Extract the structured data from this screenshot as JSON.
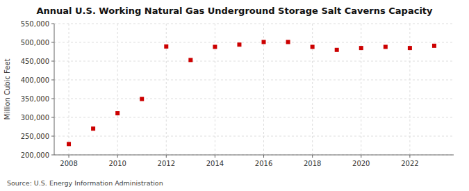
{
  "chart_data": {
    "type": "scatter",
    "title": "Annual U.S. Working Natural Gas Underground Storage Salt Caverns Capacity",
    "ylabel": "Million Cubic Feet",
    "annotation": "Source: U.S. Energy Information Administration",
    "x": [
      2008,
      2009,
      2010,
      2011,
      2012,
      2013,
      2014,
      2015,
      2016,
      2017,
      2018,
      2019,
      2020,
      2021,
      2022,
      2023
    ],
    "values": [
      229000,
      270000,
      311000,
      349000,
      489000,
      453000,
      488000,
      494000,
      501000,
      501000,
      488000,
      480000,
      485000,
      488000,
      485000,
      491000
    ],
    "color": "#cc0000",
    "marker": "square",
    "grid": true,
    "xlim": [
      2007.4,
      2023.8
    ],
    "xticks": [
      2008,
      2010,
      2012,
      2014,
      2016,
      2018,
      2020,
      2022
    ],
    "ylim": [
      200000,
      550000
    ],
    "yticks": [
      {
        "value": 200000,
        "label": "200,000"
      },
      {
        "value": 250000,
        "label": "250,000"
      },
      {
        "value": 300000,
        "label": "300,000"
      },
      {
        "value": 350000,
        "label": "350,000"
      },
      {
        "value": 400000,
        "label": "400,000"
      },
      {
        "value": 450000,
        "label": "450,000"
      },
      {
        "value": 500000,
        "label": "500,000"
      },
      {
        "value": 550000,
        "label": "550,000"
      }
    ]
  }
}
